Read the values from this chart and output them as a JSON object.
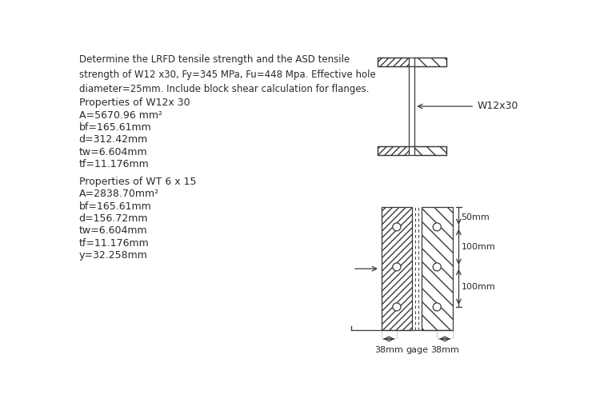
{
  "title_text": "Determine the LRFD tensile strength and the ASD tensile\nstrength of W12 x30, Fy=345 MPa, Fu=448 Mpa. Effective hole\ndiameter=25mm. Include block shear calculation for flanges.",
  "properties_w12_title": "Properties of W12x 30",
  "props_w12": [
    "A=5670.96 mm²",
    "bf=165.61mm",
    "d=312.42mm",
    "tw=6.604mm",
    "tf=11.176mm"
  ],
  "properties_wt6_title": "Properties of WT 6 x 15",
  "props_wt6": [
    "A=2838.70mm²",
    "bf=165.61mm",
    "d=156.72mm",
    "tw=6.604mm",
    "tf=11.176mm",
    "y=32.258mm"
  ],
  "dim_50mm": "50mm",
  "dim_100mm_1": "100mm",
  "dim_100mm_2": "100mm",
  "dim_38mm_left": "38mm",
  "dim_gage": "gage",
  "dim_38mm_right": "38mm",
  "label_w12x30": "W12x30",
  "bg_color": "#ffffff",
  "line_color": "#3a3a3a",
  "text_color": "#2a2a2a",
  "font_size_title": 8.5,
  "font_size_props": 9.0,
  "font_size_dims": 8.0
}
